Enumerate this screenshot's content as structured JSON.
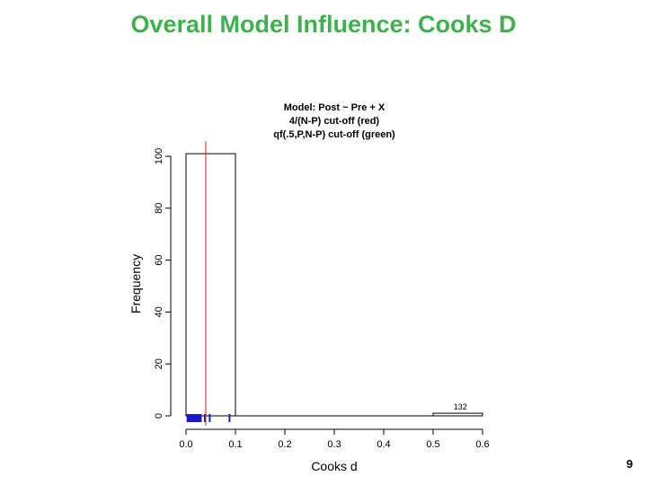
{
  "slide": {
    "title": "Overall Model Influence: Cooks D",
    "page_number": "9"
  },
  "colors": {
    "title": "#3cb34a",
    "cutoff_red": "#cc2222",
    "rug_blue": "#1a1acc"
  },
  "chart_data": {
    "type": "bar",
    "title_lines": [
      "Model: Post ~ Pre + X",
      "4/(N-P) cut-off (red)",
      "qf(.5,P,N-P) cut-off (green)"
    ],
    "xlabel": "Cooks d",
    "ylabel": "Frequency",
    "xlim": [
      0.0,
      0.6
    ],
    "ylim": [
      0,
      100
    ],
    "x_ticks": [
      "0.0",
      "0.1",
      "0.2",
      "0.3",
      "0.4",
      "0.5",
      "0.6"
    ],
    "y_ticks": [
      "0",
      "20",
      "40",
      "60",
      "80",
      "100"
    ],
    "bins": [
      {
        "x0": 0.0,
        "x1": 0.1,
        "count": 101
      },
      {
        "x0": 0.1,
        "x1": 0.2,
        "count": 0
      },
      {
        "x0": 0.2,
        "x1": 0.3,
        "count": 0
      },
      {
        "x0": 0.3,
        "x1": 0.4,
        "count": 0
      },
      {
        "x0": 0.4,
        "x1": 0.5,
        "count": 0
      },
      {
        "x0": 0.5,
        "x1": 0.6,
        "count": 1
      }
    ],
    "red_cutoff": 0.04,
    "rug": [
      0.003,
      0.006,
      0.009,
      0.012,
      0.015,
      0.018,
      0.021,
      0.024,
      0.027,
      0.03,
      0.038,
      0.048,
      0.088
    ],
    "annotations": [
      {
        "text": "132",
        "x": 0.555,
        "y": 1
      }
    ]
  }
}
